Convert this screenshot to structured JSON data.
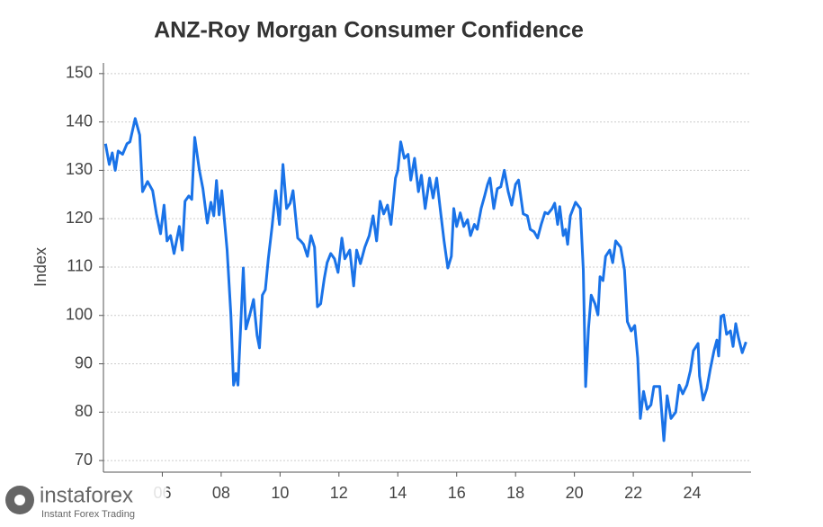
{
  "chart_data": {
    "type": "line",
    "title": "ANZ-Roy Morgan Consumer Confidence",
    "y_label": "Index",
    "x": [
      2004.07,
      2004.2,
      2004.3,
      2004.4,
      2004.5,
      2004.65,
      2004.8,
      2004.9,
      2005.08,
      2005.23,
      2005.33,
      2005.5,
      2005.67,
      2005.8,
      2005.94,
      2006.06,
      2006.16,
      2006.28,
      2006.4,
      2006.58,
      2006.68,
      2006.77,
      2006.9,
      2007,
      2007.1,
      2007.26,
      2007.38,
      2007.53,
      2007.65,
      2007.75,
      2007.84,
      2007.93,
      2008.02,
      2008.2,
      2008.33,
      2008.42,
      2008.5,
      2008.57,
      2008.75,
      2008.84,
      2008.97,
      2009.1,
      2009.22,
      2009.3,
      2009.4,
      2009.5,
      2009.6,
      2009.73,
      2009.85,
      2009.98,
      2010.1,
      2010.22,
      2010.34,
      2010.44,
      2010.6,
      2010.7,
      2010.8,
      2010.93,
      2011.05,
      2011.17,
      2011.27,
      2011.38,
      2011.5,
      2011.6,
      2011.72,
      2011.85,
      2011.97,
      2012.1,
      2012.2,
      2012.37,
      2012.5,
      2012.6,
      2012.73,
      2012.88,
      2013.03,
      2013.16,
      2013.28,
      2013.4,
      2013.52,
      2013.65,
      2013.77,
      2013.92,
      2014,
      2014.1,
      2014.22,
      2014.35,
      2014.44,
      2014.57,
      2014.7,
      2014.8,
      2014.93,
      2015.08,
      2015.2,
      2015.32,
      2015.44,
      2015.57,
      2015.7,
      2015.82,
      2015.9,
      2016,
      2016.12,
      2016.24,
      2016.37,
      2016.47,
      2016.6,
      2016.7,
      2016.83,
      2016.95,
      2017.05,
      2017.13,
      2017.26,
      2017.38,
      2017.5,
      2017.62,
      2017.75,
      2017.87,
      2018,
      2018.1,
      2018.26,
      2018.4,
      2018.5,
      2018.63,
      2018.75,
      2018.87,
      2019,
      2019.1,
      2019.24,
      2019.33,
      2019.43,
      2019.5,
      2019.62,
      2019.7,
      2019.77,
      2019.86,
      2020.04,
      2020.2,
      2020.3,
      2020.38,
      2020.48,
      2020.57,
      2020.7,
      2020.8,
      2020.87,
      2020.97,
      2021.06,
      2021.2,
      2021.3,
      2021.4,
      2021.57,
      2021.7,
      2021.8,
      2021.93,
      2022.05,
      2022.15,
      2022.24,
      2022.35,
      2022.47,
      2022.6,
      2022.7,
      2022.9,
      2023.04,
      2023.15,
      2023.28,
      2023.44,
      2023.56,
      2023.68,
      2023.82,
      2023.94,
      2024.04,
      2024.2,
      2024.25,
      2024.37,
      2024.5,
      2024.62,
      2024.74,
      2024.84,
      2024.9,
      2024.98,
      2025.07,
      2025.17,
      2025.3,
      2025.39,
      2025.48,
      2025.57,
      2025.7,
      2025.83
    ],
    "series": [
      {
        "color": "#1a73e8",
        "values": [
          135.5,
          131.2,
          133.6,
          130,
          134,
          133.3,
          135.5,
          135.9,
          140.7,
          137.3,
          125.6,
          127.7,
          125.8,
          121,
          116.9,
          122.8,
          115.4,
          116.5,
          112.8,
          118.4,
          113.5,
          123.6,
          124.7,
          124,
          136.8,
          130,
          126.2,
          119.1,
          123.4,
          120.6,
          127.9,
          120.8,
          125.8,
          113.5,
          100.1,
          85.6,
          88,
          85.6,
          109.8,
          97.2,
          100.1,
          103.3,
          95.9,
          93.3,
          104.2,
          105.3,
          111.7,
          118.4,
          125.8,
          118.8,
          131.2,
          122.1,
          123.2,
          125.8,
          116,
          115.4,
          114.7,
          112.2,
          116.5,
          114.1,
          101.8,
          102.4,
          107.6,
          110.9,
          112.8,
          111.7,
          108.9,
          116,
          111.7,
          113.5,
          106.1,
          113.5,
          110.7,
          114.1,
          116.5,
          120.6,
          115.4,
          123.6,
          121,
          122.8,
          118.8,
          128.4,
          130,
          135.9,
          132.5,
          133.3,
          128,
          132.5,
          125.6,
          129,
          122.1,
          128.4,
          124.3,
          128.4,
          122.1,
          115.4,
          109.8,
          112.2,
          122.1,
          118.4,
          121.2,
          118.4,
          119.8,
          116.5,
          118.8,
          117.8,
          122.1,
          124.7,
          127.1,
          128.4,
          122.1,
          126.2,
          126.6,
          130,
          125.6,
          122.8,
          127.1,
          128,
          121,
          120.6,
          117.8,
          117.3,
          116,
          118.8,
          121.3,
          121,
          122.1,
          123.2,
          118.8,
          122.5,
          116.5,
          117.8,
          114.7,
          120.6,
          123.4,
          122.1,
          109.4,
          85.3,
          97.3,
          104.2,
          102.4,
          100.1,
          108,
          107.2,
          112.2,
          113.5,
          110.9,
          115.4,
          114.1,
          109.4,
          98.7,
          96.8,
          97.9,
          91.2,
          78.7,
          84.3,
          80.6,
          81.5,
          85.3,
          85.3,
          74.1,
          83.4,
          78.7,
          80,
          85.6,
          83.8,
          85.6,
          88.6,
          92.7,
          94.2,
          87.5,
          82.5,
          84.9,
          89,
          92.7,
          94.9,
          91.6,
          99.8,
          100.1,
          96.1,
          96.8,
          93.6,
          98.3,
          95.5,
          92.3,
          94.5
        ]
      }
    ],
    "xlim": [
      2004,
      2026
    ],
    "ylim": [
      67.6,
      152.2
    ],
    "xticks": [
      {
        "value": 2006,
        "label": "06"
      },
      {
        "value": 2008,
        "label": "08"
      },
      {
        "value": 2010,
        "label": "10"
      },
      {
        "value": 2012,
        "label": "12"
      },
      {
        "value": 2014,
        "label": "14"
      },
      {
        "value": 2016,
        "label": "16"
      },
      {
        "value": 2018,
        "label": "18"
      },
      {
        "value": 2020,
        "label": "20"
      },
      {
        "value": 2022,
        "label": "22"
      },
      {
        "value": 2024,
        "label": "24"
      }
    ],
    "yticks": [
      70,
      80,
      90,
      100,
      110,
      120,
      130,
      140,
      150
    ],
    "grid": true
  },
  "watermark": {
    "brand": "instaforex",
    "tagline": "Instant Forex Trading"
  }
}
